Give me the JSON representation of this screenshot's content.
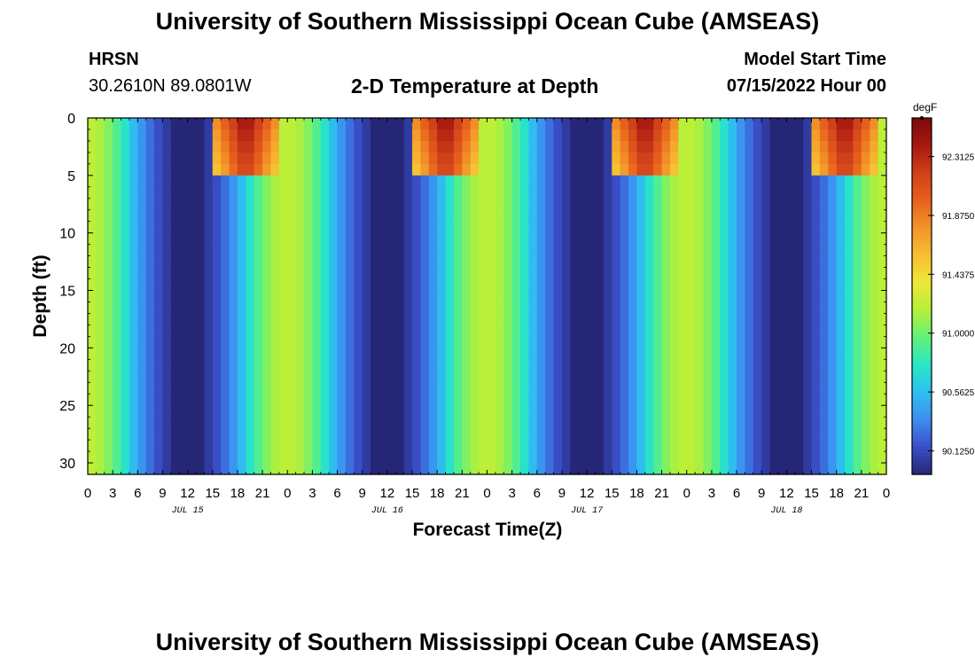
{
  "page": {
    "title": "University of Southern Mississippi Ocean Cube (AMSEAS)",
    "station": "HRSN",
    "coords": "30.2610N  89.0801W",
    "plot_title": "2-D Temperature at Depth",
    "start_label": "Model Start Time",
    "start_value": "07/15/2022 Hour 00",
    "bottom_title": "University of Southern Mississippi Ocean Cube (AMSEAS)"
  },
  "colors": {
    "ramp": [
      "#262676",
      "#3a4fc8",
      "#3c8ef0",
      "#2ec0f0",
      "#28e8c4",
      "#63f07a",
      "#b5f038",
      "#eee838",
      "#f6be30",
      "#f29428",
      "#e8601c",
      "#d0401a",
      "#a81810",
      "#7a0a08"
    ]
  },
  "chart_data": {
    "type": "heatmap",
    "title": "2-D Temperature at Depth",
    "xlabel": "Forecast Time(Z)",
    "ylabel": "Depth (ft)",
    "units": "degF",
    "x_ticks": [
      "0",
      "3",
      "6",
      "9",
      "12",
      "15",
      "18",
      "21",
      "0",
      "3",
      "6",
      "9",
      "12",
      "15",
      "18",
      "21",
      "0",
      "3",
      "6",
      "9",
      "12",
      "15",
      "18",
      "21",
      "0",
      "3",
      "6",
      "9",
      "12",
      "15",
      "18",
      "21",
      "0"
    ],
    "x_range_hours": [
      0,
      96
    ],
    "day_labels": [
      {
        "label": "JUL 15",
        "hour": 12
      },
      {
        "label": "JUL 16",
        "hour": 36
      },
      {
        "label": "JUL 17",
        "hour": 60
      },
      {
        "label": "JUL 18",
        "hour": 84
      }
    ],
    "y_ticks": [
      "0",
      "5",
      "10",
      "15",
      "20",
      "25",
      "30"
    ],
    "y_range": [
      0,
      31
    ],
    "colorbar_ticks": [
      "92.3125",
      "91.8750",
      "91.4375",
      "91.0000",
      "90.5625",
      "90.1250"
    ],
    "value_range": [
      89.95,
      92.6
    ],
    "warm_hours": [
      0,
      24,
      48,
      72,
      96
    ],
    "cool_hours": [
      12,
      36,
      60,
      84
    ],
    "surface_max_hours": [
      19,
      43,
      67,
      91
    ],
    "surface_layer_depth_ft": 5
  }
}
